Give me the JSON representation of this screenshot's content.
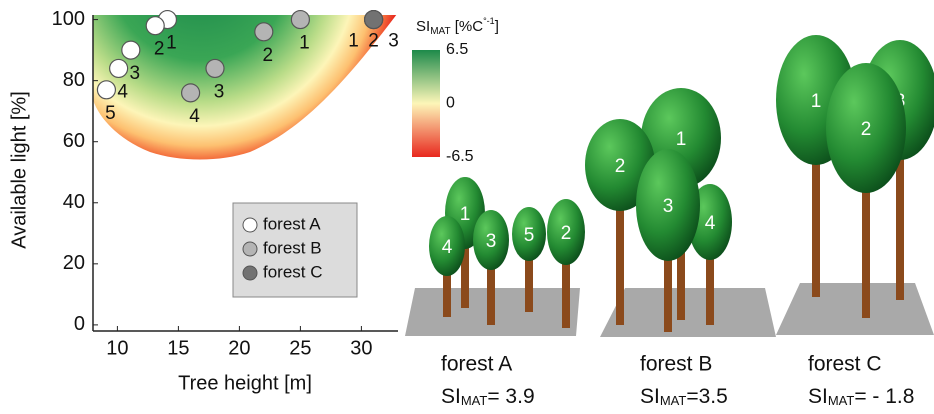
{
  "chart_data": {
    "type": "scatter",
    "x_label": "Tree height [m]",
    "y_label": "Available light [%]",
    "xlim": [
      8,
      33
    ],
    "ylim": [
      -2,
      101.5
    ],
    "xticks": [
      10,
      15,
      20,
      25,
      30
    ],
    "yticks": [
      0,
      20,
      40,
      60,
      80,
      100
    ],
    "series": [
      {
        "name": "forest A",
        "color": "#ffffff",
        "x": [
          14.1,
          13.1,
          11.1,
          10.1,
          9.1
        ],
        "values": [
          100,
          98,
          90,
          84,
          77
        ],
        "labels": [
          "1",
          "2",
          "3",
          "4",
          "5"
        ]
      },
      {
        "name": "forest B",
        "color": "#b4b4b4",
        "x": [
          25,
          22,
          18,
          16
        ],
        "values": [
          100,
          96,
          84,
          76
        ],
        "labels": [
          "1",
          "2",
          "3",
          "4"
        ]
      },
      {
        "name": "forest C",
        "color": "#727272",
        "x": [
          31,
          31,
          31
        ],
        "values": [
          100,
          100,
          100
        ],
        "labels": [
          "1",
          "2",
          "3"
        ]
      }
    ],
    "colorbar": {
      "label": "SI",
      "label_sub": "MAT",
      "unit": " [%C",
      "unit_sup": "°-1",
      "unit_end": "]",
      "lim": [
        -6.5,
        6.5
      ],
      "ticks": [
        6.5,
        0,
        -6.5
      ],
      "colors": [
        "#e8281e",
        "#fdf6b8",
        "#1d8a4a"
      ]
    }
  },
  "illustrations": [
    {
      "name": "forest A",
      "si": "SI",
      "si_sub": "MAT",
      "si_text": "= 3.9",
      "trees": [
        "1",
        "2",
        "3",
        "4",
        "5"
      ]
    },
    {
      "name": "forest B",
      "si": "SI",
      "si_sub": "MAT",
      "si_text": "=3.5",
      "trees": [
        "1",
        "2",
        "3",
        "4"
      ]
    },
    {
      "name": "forest C",
      "si": "SI",
      "si_sub": "MAT",
      "si_text": "= - 1.8",
      "trees": [
        "1",
        "2",
        "3"
      ]
    }
  ]
}
